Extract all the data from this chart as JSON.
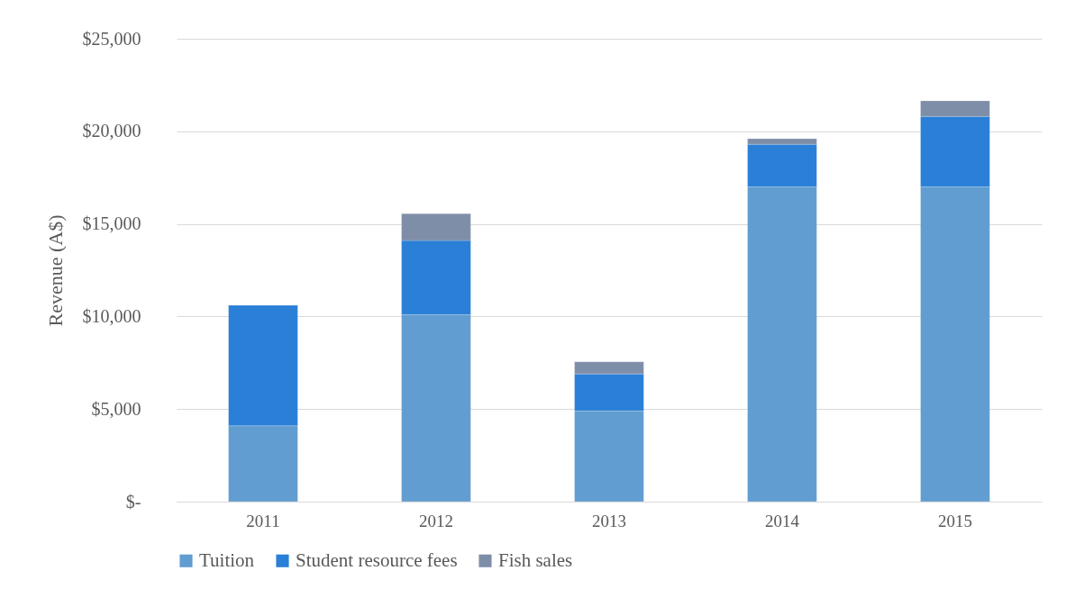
{
  "chart_data": {
    "type": "bar",
    "stacked": true,
    "ylabel": "Revenue (A$)",
    "categories": [
      "2011",
      "2012",
      "2013",
      "2014",
      "2015"
    ],
    "series": [
      {
        "name": "Tuition",
        "color": "#619dd1",
        "values": [
          4100,
          10100,
          4900,
          17000,
          17000
        ]
      },
      {
        "name": "Student resource fees",
        "color": "#2a7fd6",
        "values": [
          6500,
          4000,
          2000,
          2300,
          3800
        ]
      },
      {
        "name": "Fish sales",
        "color": "#7f8ea8",
        "values": [
          null,
          1450,
          650,
          300,
          850
        ]
      }
    ],
    "ylim": [
      0,
      25000
    ],
    "yticks": [
      {
        "value": 0,
        "label": "$-"
      },
      {
        "value": 5000,
        "label": "$5,000"
      },
      {
        "value": 10000,
        "label": "$10,000"
      },
      {
        "value": 15000,
        "label": "$15,000"
      },
      {
        "value": 20000,
        "label": "$20,000"
      },
      {
        "value": 25000,
        "label": "$25,000"
      }
    ],
    "grid": "y",
    "legend": "bottom"
  }
}
